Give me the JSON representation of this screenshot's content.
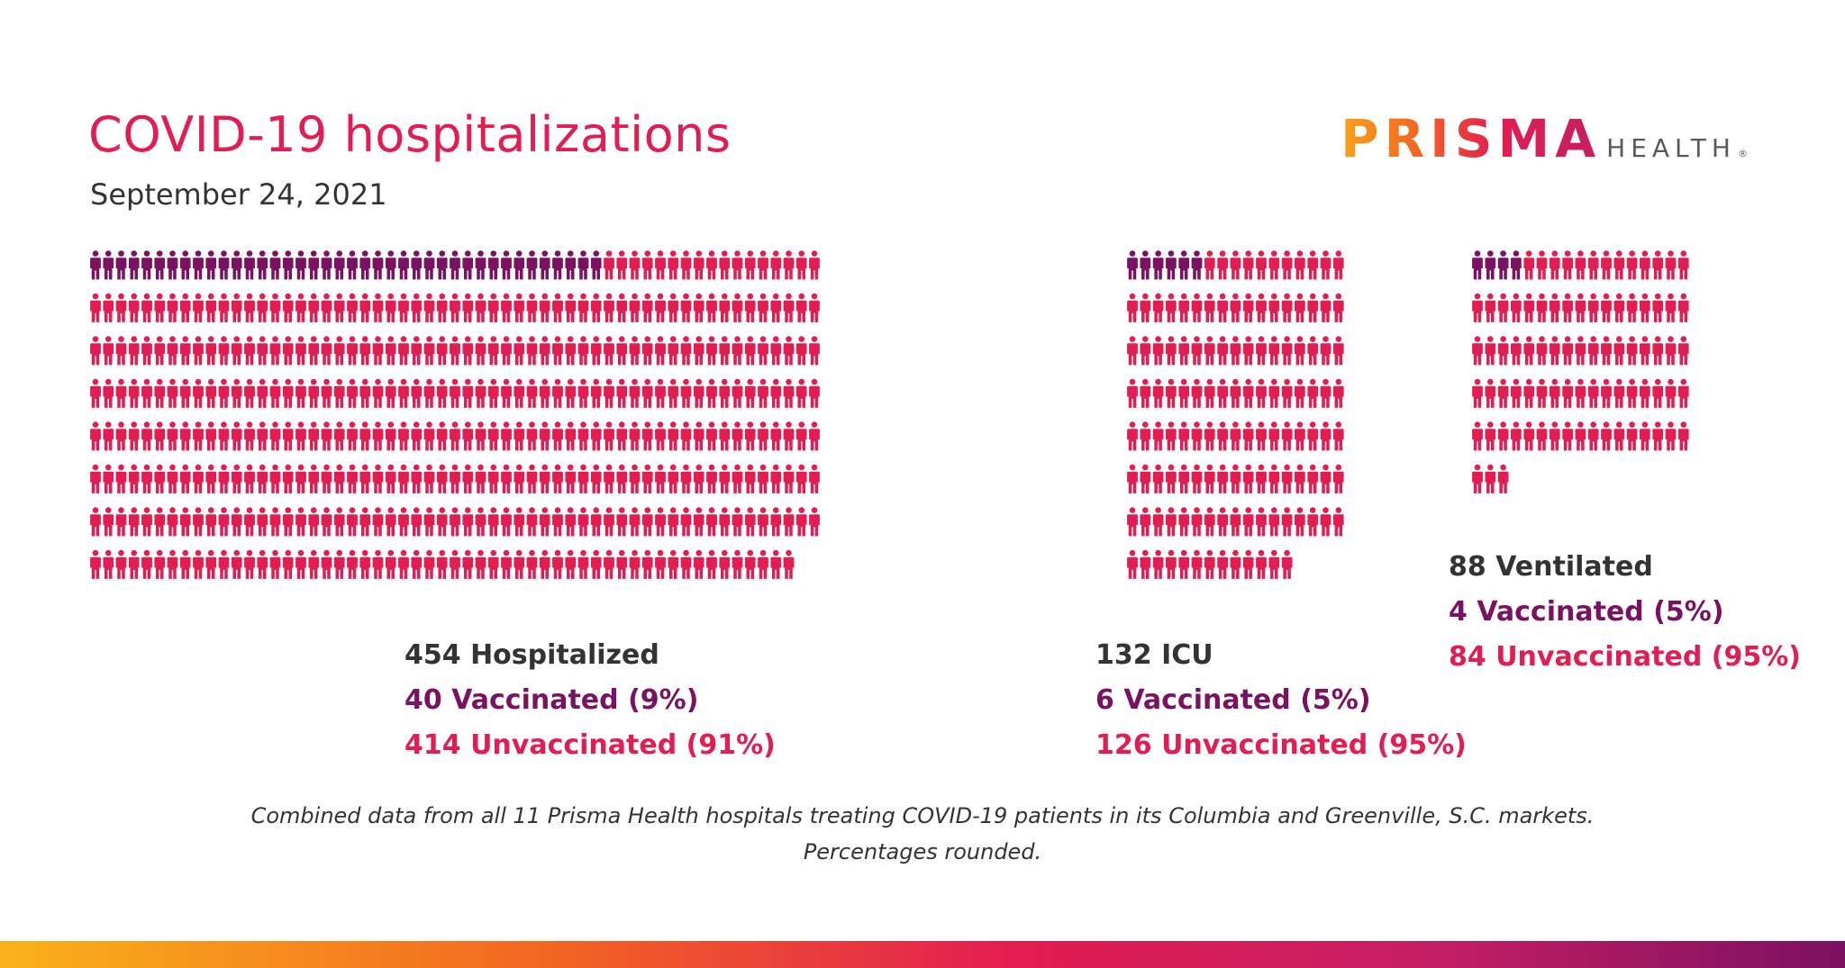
{
  "header": {
    "title": "COVID-19 hospitalizations",
    "date": "September 24, 2021"
  },
  "logo": {
    "mark": "PRISMA",
    "word": "HEALTH",
    "registered": "®"
  },
  "colors": {
    "vaccinated": "#7b1161",
    "unvaccinated": "#e21d52",
    "title": "#e21d52",
    "text": "#333333"
  },
  "chart_data": [
    {
      "type": "table",
      "name": "Hospitalized",
      "icon": "person-icon",
      "total": 454,
      "vaccinated": 40,
      "unvaccinated": 414,
      "labels": {
        "total": "454 Hospitalized",
        "vaccinated": "40 Vaccinated (9%)",
        "unvaccinated": "414 Unvaccinated (91%)"
      }
    },
    {
      "type": "table",
      "name": "ICU",
      "icon": "person-icon",
      "total": 132,
      "vaccinated": 6,
      "unvaccinated": 126,
      "labels": {
        "total": "132 ICU",
        "vaccinated": "6 Vaccinated (5%)",
        "unvaccinated": "126 Unvaccinated (95%)"
      }
    },
    {
      "type": "table",
      "name": "Ventilated",
      "icon": "person-icon",
      "total": 88,
      "vaccinated": 4,
      "unvaccinated": 84,
      "labels": {
        "total": "88 Ventilated",
        "vaccinated": "4 Vaccinated (5%)",
        "unvaccinated": "84 Unvaccinated (95%)"
      }
    }
  ],
  "footnote": {
    "line1": "Combined data from all 11 Prisma Health hospitals treating COVID-19 patients in its Columbia and Greenville, S.C. markets.",
    "line2": "Percentages rounded."
  }
}
